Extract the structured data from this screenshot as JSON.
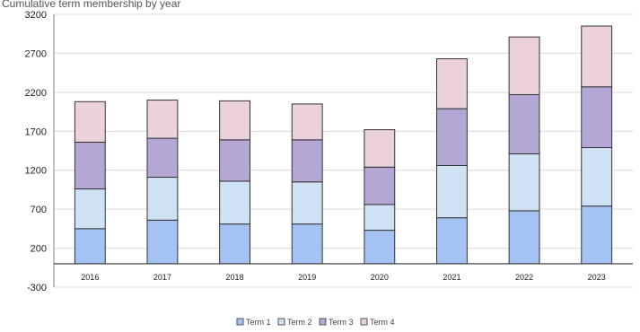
{
  "chart_data": {
    "type": "bar",
    "stacked": true,
    "title": "Cumulative term membership by year",
    "xlabel": "",
    "ylabel": "",
    "categories": [
      "2016",
      "2017",
      "2018",
      "2019",
      "2020",
      "2021",
      "2022",
      "2023"
    ],
    "series": [
      {
        "name": "Term 1",
        "color": "#a4c2f4",
        "values": [
          450,
          560,
          510,
          510,
          430,
          590,
          680,
          740
        ]
      },
      {
        "name": "Term 2",
        "color": "#cfe2f3",
        "values": [
          510,
          550,
          550,
          540,
          330,
          670,
          730,
          750
        ]
      },
      {
        "name": "Term 3",
        "color": "#b4a7d6",
        "values": [
          600,
          500,
          530,
          540,
          480,
          730,
          760,
          780
        ]
      },
      {
        "name": "Term 4",
        "color": "#ead1dc",
        "values": [
          520,
          490,
          500,
          460,
          480,
          640,
          740,
          780
        ]
      }
    ],
    "ylim": [
      -300,
      3200
    ],
    "yticks": [
      -300,
      200,
      700,
      1200,
      1700,
      2200,
      2700,
      3200
    ],
    "grid": true,
    "legend_position": "bottom"
  }
}
